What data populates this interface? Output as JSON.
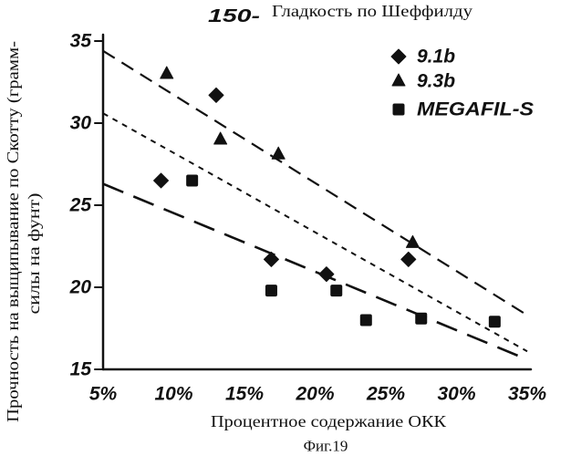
{
  "figure": {
    "caption": "Фиг.19"
  },
  "chart_data": {
    "type": "scatter",
    "title": "Гладкость по Шеффилду",
    "top_axis_tick": "150-",
    "xlabel": "Процентное содержание ОКК",
    "ylabel": [
      "Прочность на выщипывание по Скотту (грамм-",
      "силы на фунт)"
    ],
    "xlim": [
      5,
      35
    ],
    "ylim": [
      15,
      35
    ],
    "grid": false,
    "legend_position": "top-right",
    "x_ticks": [
      5,
      10,
      15,
      20,
      25,
      30,
      35
    ],
    "x_tick_labels": [
      "5%",
      "10%",
      "15%",
      "20%",
      "25%",
      "30%",
      "35%"
    ],
    "y_ticks": [
      15,
      20,
      25,
      30,
      35
    ],
    "y_tick_labels": [
      "15",
      "20",
      "25",
      "30",
      "35"
    ],
    "series": [
      {
        "name": "9.1b",
        "marker": "diamond",
        "x": [
          9.1,
          13.0,
          16.9,
          20.8,
          26.6
        ],
        "y": [
          26.5,
          31.7,
          21.7,
          20.8,
          21.7
        ]
      },
      {
        "name": "9.3b",
        "marker": "triangle",
        "x": [
          9.5,
          13.3,
          17.4,
          26.9
        ],
        "y": [
          33.0,
          29.0,
          28.1,
          22.7
        ]
      },
      {
        "name": "MEGAFIL-S",
        "marker": "square",
        "x": [
          11.3,
          16.9,
          21.5,
          23.6,
          27.5,
          32.7
        ],
        "y": [
          26.5,
          19.8,
          19.8,
          18.0,
          18.1,
          17.9
        ]
      }
    ],
    "trend_lines": [
      {
        "x": [
          5,
          35
        ],
        "y": [
          34.4,
          18.3
        ]
      },
      {
        "x": [
          5,
          35
        ],
        "y": [
          30.6,
          16.1
        ]
      },
      {
        "x": [
          5,
          35
        ],
        "y": [
          26.3,
          15.6
        ]
      }
    ],
    "colors": {
      "ink": "#111111",
      "background": "#ffffff"
    }
  }
}
